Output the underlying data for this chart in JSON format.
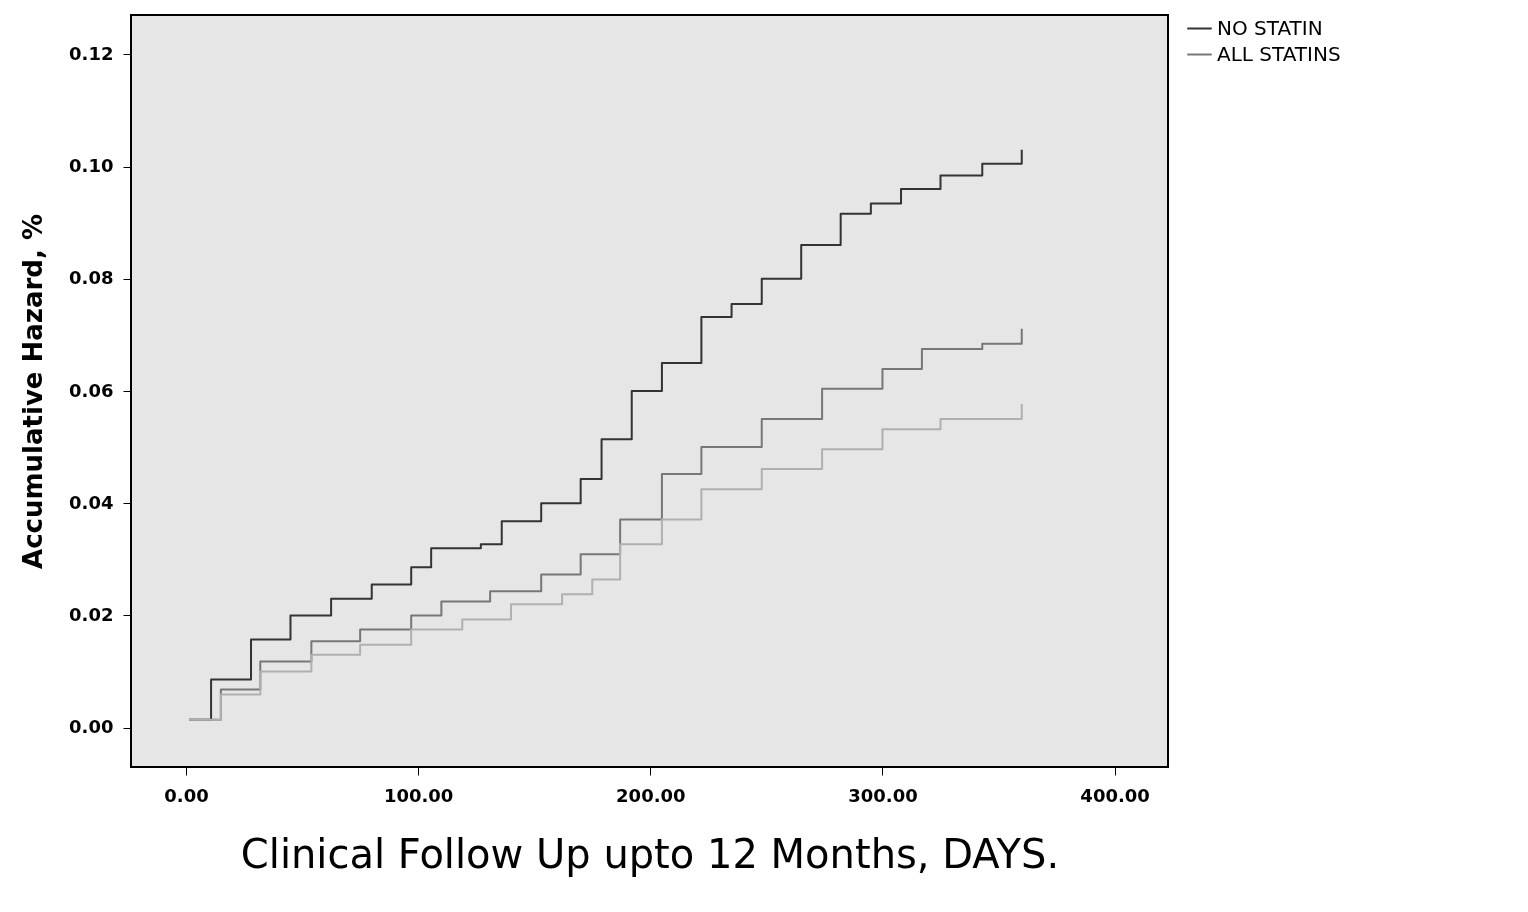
{
  "chart_data": {
    "type": "step",
    "xlabel": "Clinical Follow Up upto 12 Months, DAYS.",
    "ylabel": "Accumulative Hazard, %",
    "xlim": [
      -23.7,
      423
    ],
    "ylim": [
      -0.007,
      0.127
    ],
    "xticks": [
      {
        "value": 0,
        "label": "0.00"
      },
      {
        "value": 100,
        "label": "100.00"
      },
      {
        "value": 200,
        "label": "200.00"
      },
      {
        "value": 300,
        "label": "300.00"
      },
      {
        "value": 400,
        "label": "400.00"
      }
    ],
    "yticks": [
      {
        "value": 0,
        "label": "0.00"
      },
      {
        "value": 0.02,
        "label": "0.02"
      },
      {
        "value": 0.04,
        "label": "0.04"
      },
      {
        "value": 0.06,
        "label": "0.06"
      },
      {
        "value": 0.08,
        "label": "0.08"
      },
      {
        "value": 0.1,
        "label": "0.10"
      },
      {
        "value": 0.12,
        "label": "0.12"
      }
    ],
    "grid": false,
    "legend": "top right",
    "line_style": "solid",
    "series": [
      {
        "name": "NO STATIN",
        "color": "#333333",
        "x": [
          1.3,
          10.8,
          28,
          45,
          62.5,
          80,
          97,
          105.6,
          127,
          136,
          153,
          170,
          179,
          192,
          205,
          222,
          235,
          248,
          265,
          282,
          295,
          308,
          325,
          343,
          360
        ],
        "values": [
          0.0014,
          0.0086,
          0.0157,
          0.02,
          0.023,
          0.0255,
          0.0286,
          0.032,
          0.0327,
          0.0368,
          0.04,
          0.0443,
          0.0514,
          0.06,
          0.065,
          0.0732,
          0.0755,
          0.08,
          0.086,
          0.0916,
          0.0934,
          0.096,
          0.0984,
          0.1005,
          0.103
        ]
      },
      {
        "name": "ALL STATINS",
        "color": "#777777",
        "x": [
          1.3,
          15,
          32,
          54,
          75,
          97,
          110,
          131,
          153,
          170,
          187,
          205,
          222,
          248,
          274,
          300,
          317,
          343,
          360
        ],
        "values": [
          0.0014,
          0.0068,
          0.0118,
          0.0154,
          0.0175,
          0.02,
          0.0225,
          0.0243,
          0.0273,
          0.0309,
          0.0371,
          0.0452,
          0.05,
          0.055,
          0.0604,
          0.0639,
          0.0675,
          0.0684,
          0.0711
        ]
      },
      {
        "color": "#b0b0b0",
        "x": [
          1.3,
          15,
          32,
          54,
          75,
          97,
          119,
          140,
          162,
          175,
          187,
          205,
          222,
          248,
          274,
          300,
          325,
          360
        ],
        "values": [
          0.0014,
          0.0059,
          0.01,
          0.013,
          0.0148,
          0.0175,
          0.0193,
          0.022,
          0.0238,
          0.0264,
          0.0327,
          0.0371,
          0.0425,
          0.0461,
          0.0496,
          0.0532,
          0.055,
          0.0577
        ]
      }
    ]
  }
}
